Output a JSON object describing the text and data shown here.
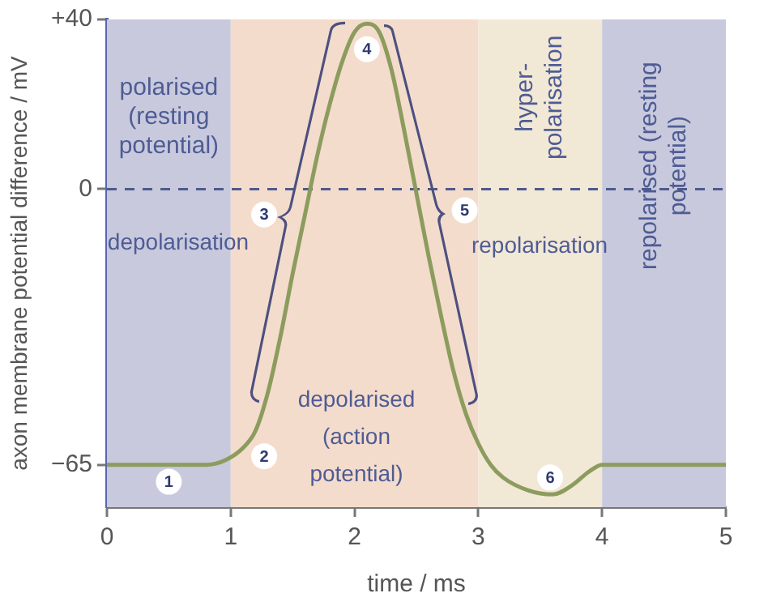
{
  "chart_data": {
    "type": "line",
    "xlabel": "time / ms",
    "ylabel": "axon membrane potential difference / mV",
    "xlim": [
      0,
      5
    ],
    "xticks": [
      0,
      1,
      2,
      3,
      4,
      5
    ],
    "ylim": [
      -75,
      40
    ],
    "yticks": [
      {
        "value": 40,
        "label": "+40"
      },
      0,
      {
        "value": -65,
        "label": "−65"
      }
    ],
    "grid": false,
    "legend": false,
    "marker": "none",
    "line_style": "solid",
    "series": [
      {
        "color": "#8c9c5e",
        "x": [
          0,
          0.8,
          0.95,
          1.1,
          1.2,
          1.3,
          1.4,
          1.5,
          1.6,
          1.7,
          1.8,
          1.9,
          2.0,
          2.1,
          2.2,
          2.3,
          2.4,
          2.5,
          2.6,
          2.7,
          2.8,
          2.9,
          3.0,
          3.1,
          3.2,
          3.4,
          3.6,
          3.75,
          3.9,
          4.0,
          5
        ],
        "values": [
          -65,
          -65,
          -64,
          -61,
          -57,
          -48,
          -35,
          -20,
          -6,
          8,
          20,
          30,
          37,
          39,
          37,
          28,
          14,
          -1,
          -16,
          -30,
          -43,
          -53,
          -60,
          -65,
          -68,
          -71,
          -72,
          -70,
          -66.5,
          -65,
          -65
        ]
      }
    ],
    "bands": [
      {
        "axis": "x",
        "from": 0,
        "to": 1,
        "label": "polarised (resting potential)",
        "color": "#c8c9dd"
      },
      {
        "axis": "x",
        "from": 1,
        "to": 3,
        "color": "#f4dccc"
      },
      {
        "axis": "x",
        "from": 3,
        "to": 4,
        "label": "hyper-polarisation",
        "color": "#f2e8d6"
      },
      {
        "axis": "x",
        "from": 4,
        "to": 5,
        "label": "repolarised (resting potential)",
        "color": "#c8c9dd"
      }
    ],
    "ref_lines": [
      {
        "axis": "y",
        "value": 0,
        "color": "#4d5a8c",
        "line_style": "dashed"
      }
    ],
    "annotations": [
      "depolarisation",
      "repolarisation",
      "depolarised (action potential)",
      {
        "text": "1",
        "x": 0.5,
        "y": -69
      },
      {
        "text": "2",
        "x": 1.27,
        "y": -63
      },
      {
        "text": "3",
        "x": 1.27,
        "y": -6
      },
      {
        "text": "4",
        "x": 2.1,
        "y": 33
      },
      {
        "text": "5",
        "x": 2.89,
        "y": -5
      },
      {
        "text": "6",
        "x": 3.58,
        "y": -68
      }
    ]
  }
}
